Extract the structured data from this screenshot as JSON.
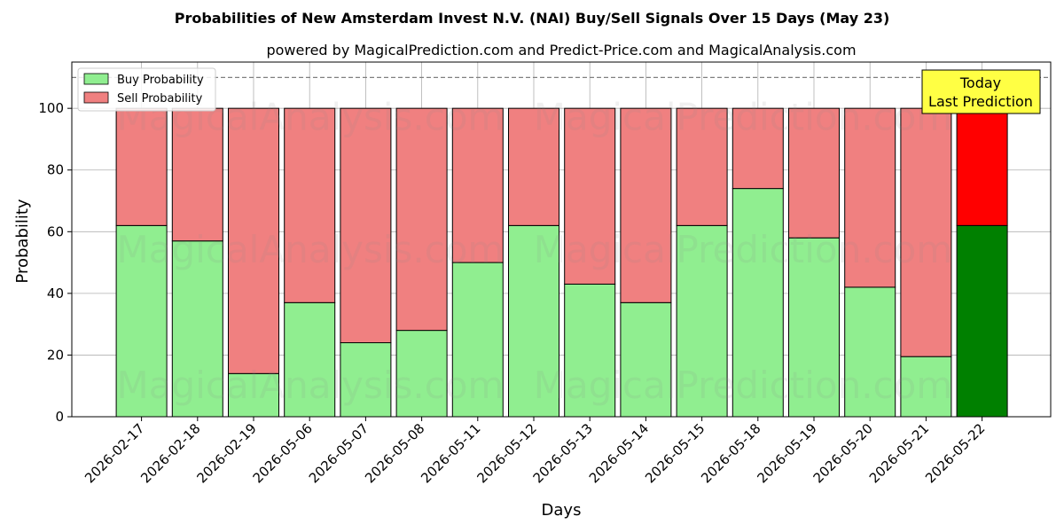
{
  "chart_data": {
    "type": "bar",
    "stacked": true,
    "title": "Probabilities of New Amsterdam Invest N.V. (NAI) Buy/Sell Signals Over 15 Days (May 23)",
    "subtitle": "powered by MagicalPrediction.com and Predict-Price.com and MagicalAnalysis.com",
    "xlabel": "Days",
    "ylabel": "Probability",
    "ylim": [
      0,
      115
    ],
    "yticks": [
      0,
      20,
      40,
      60,
      80,
      100
    ],
    "threshold_line": 110,
    "grid": true,
    "legend_position": "top-left",
    "categories": [
      "2026-02-17",
      "2026-02-18",
      "2026-02-19",
      "2026-05-06",
      "2026-05-07",
      "2026-05-08",
      "2026-05-11",
      "2026-05-12",
      "2026-05-13",
      "2026-05-14",
      "2026-05-15",
      "2026-05-18",
      "2026-05-19",
      "2026-05-20",
      "2026-05-21",
      "2026-05-22"
    ],
    "series": [
      {
        "name": "Buy Probability",
        "color": "#90ee90",
        "highlight_color": "#008000",
        "values": [
          62,
          57,
          14,
          37,
          24,
          28,
          50,
          62,
          43,
          37,
          62,
          74,
          58,
          42,
          19.5,
          62
        ]
      },
      {
        "name": "Sell Probability",
        "color": "#f08080",
        "highlight_color": "#ff0000",
        "values": [
          38,
          43,
          86,
          63,
          76,
          72,
          50,
          38,
          57,
          63,
          38,
          26,
          42,
          58,
          80.5,
          38
        ]
      }
    ],
    "highlight_index": 15,
    "annotation": {
      "lines": [
        "Today",
        "Last Prediction"
      ],
      "color": "#ffff44"
    },
    "watermarks": [
      "MagicalAnalysis.com",
      "MagicalPrediction.com"
    ]
  }
}
